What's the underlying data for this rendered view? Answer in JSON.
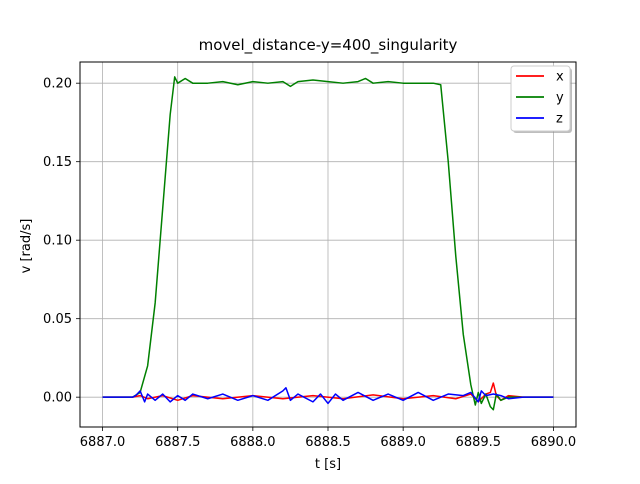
{
  "chart_data": {
    "type": "line",
    "title": "movel_distance-y=400_singularity",
    "xlabel": "t [s]",
    "ylabel": "v [rad/s]",
    "xlim": [
      6886.85,
      6890.15
    ],
    "ylim": [
      -0.019,
      0.2135
    ],
    "xticks": [
      6887.0,
      6887.5,
      6888.0,
      6888.5,
      6889.0,
      6889.5,
      6890.0
    ],
    "xtick_labels": [
      "6887.0",
      "6887.5",
      "6888.0",
      "6888.5",
      "6889.0",
      "6889.5",
      "6890.0"
    ],
    "yticks": [
      0.0,
      0.05,
      0.1,
      0.15,
      0.2
    ],
    "ytick_labels": [
      "0.00",
      "0.05",
      "0.10",
      "0.15",
      "0.20"
    ],
    "grid": true,
    "legend_position": "top-right",
    "series": [
      {
        "name": "x",
        "color": "#ff0000",
        "x": [
          6887.0,
          6887.2,
          6887.25,
          6887.3,
          6887.4,
          6887.5,
          6887.6,
          6887.8,
          6888.0,
          6888.2,
          6888.4,
          6888.6,
          6888.8,
          6889.0,
          6889.2,
          6889.35,
          6889.45,
          6889.5,
          6889.55,
          6889.58,
          6889.6,
          6889.62,
          6889.65,
          6889.7,
          6889.8,
          6890.0
        ],
        "values": [
          0.0,
          0.0,
          0.001,
          -0.001,
          0.001,
          -0.002,
          0.001,
          -0.001,
          0.001,
          -0.001,
          0.001,
          -0.001,
          0.0015,
          -0.001,
          0.001,
          -0.001,
          0.002,
          -0.003,
          0.002,
          0.003,
          0.009,
          0.001,
          -0.002,
          0.001,
          0.0,
          0.0
        ]
      },
      {
        "name": "y",
        "color": "#008000",
        "x": [
          6887.0,
          6887.2,
          6887.25,
          6887.3,
          6887.35,
          6887.4,
          6887.45,
          6887.48,
          6887.5,
          6887.55,
          6887.6,
          6887.7,
          6887.8,
          6887.9,
          6888.0,
          6888.1,
          6888.2,
          6888.25,
          6888.3,
          6888.4,
          6888.5,
          6888.6,
          6888.7,
          6888.75,
          6888.8,
          6888.9,
          6889.0,
          6889.1,
          6889.2,
          6889.25,
          6889.3,
          6889.35,
          6889.4,
          6889.45,
          6889.48,
          6889.5,
          6889.52,
          6889.55,
          6889.58,
          6889.6,
          6889.62,
          6889.65,
          6889.7,
          6890.0
        ],
        "values": [
          0.0,
          0.0,
          0.003,
          0.02,
          0.06,
          0.12,
          0.18,
          0.204,
          0.2,
          0.203,
          0.2,
          0.2,
          0.201,
          0.199,
          0.201,
          0.2,
          0.201,
          0.198,
          0.201,
          0.202,
          0.201,
          0.2,
          0.201,
          0.203,
          0.2,
          0.201,
          0.2,
          0.2,
          0.2,
          0.199,
          0.15,
          0.09,
          0.04,
          0.008,
          -0.005,
          0.003,
          -0.004,
          0.002,
          -0.006,
          -0.008,
          0.002,
          -0.002,
          0.0,
          0.0
        ]
      },
      {
        "name": "z",
        "color": "#0000ff",
        "x": [
          6887.0,
          6887.2,
          6887.22,
          6887.25,
          6887.28,
          6887.3,
          6887.35,
          6887.4,
          6887.45,
          6887.5,
          6887.55,
          6887.6,
          6887.7,
          6887.8,
          6887.9,
          6888.0,
          6888.1,
          6888.2,
          6888.22,
          6888.25,
          6888.3,
          6888.4,
          6888.45,
          6888.5,
          6888.55,
          6888.6,
          6888.7,
          6888.8,
          6888.9,
          6889.0,
          6889.1,
          6889.2,
          6889.3,
          6889.4,
          6889.45,
          6889.5,
          6889.52,
          6889.55,
          6889.6,
          6889.65,
          6889.7,
          6889.8,
          6890.0
        ],
        "values": [
          0.0,
          0.0,
          0.001,
          0.004,
          -0.003,
          0.002,
          -0.002,
          0.002,
          -0.003,
          0.001,
          -0.002,
          0.002,
          -0.001,
          0.002,
          -0.002,
          0.001,
          -0.002,
          0.004,
          0.006,
          -0.002,
          0.002,
          -0.003,
          0.002,
          -0.004,
          0.002,
          -0.002,
          0.003,
          -0.002,
          0.002,
          -0.002,
          0.003,
          -0.002,
          0.002,
          0.001,
          0.003,
          -0.003,
          0.004,
          0.001,
          0.002,
          0.001,
          -0.001,
          0.0,
          0.0
        ]
      }
    ]
  }
}
